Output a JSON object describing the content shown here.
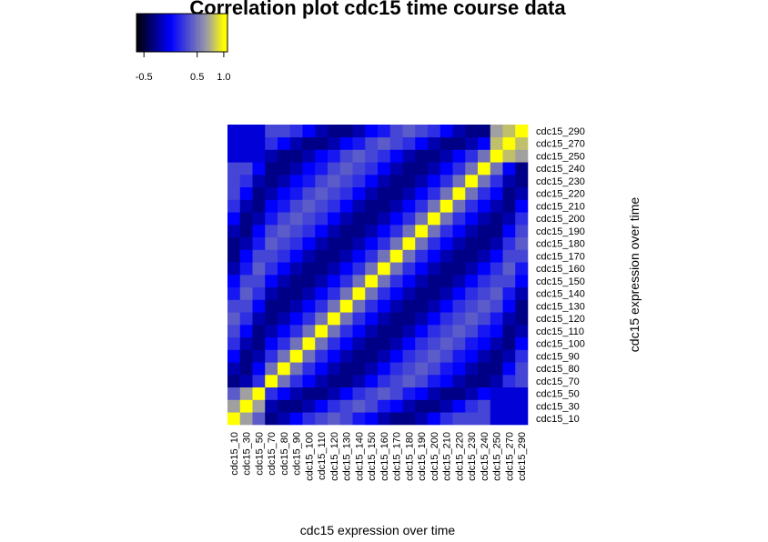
{
  "chart_data": {
    "type": "heatmap",
    "title": "Correlation plot cdc15 time course data",
    "xlabel": "cdc15 expression over time",
    "ylabel": "cdc15 expression over time",
    "categories": [
      "cdc15_10",
      "cdc15_30",
      "cdc15_50",
      "cdc15_70",
      "cdc15_80",
      "cdc15_90",
      "cdc15_100",
      "cdc15_110",
      "cdc15_120",
      "cdc15_130",
      "cdc15_140",
      "cdc15_150",
      "cdc15_160",
      "cdc15_170",
      "cdc15_180",
      "cdc15_190",
      "cdc15_200",
      "cdc15_210",
      "cdc15_220",
      "cdc15_230",
      "cdc15_240",
      "cdc15_250",
      "cdc15_270",
      "cdc15_290"
    ],
    "values": [
      [
        1,
        0.7,
        0.4,
        -0.3,
        -0.2,
        0,
        0.2,
        0.3,
        0.4,
        0.3,
        0.1,
        0,
        -0.2,
        -0.3,
        -0.3,
        -0.2,
        0,
        0.2,
        0.3,
        0.3,
        0.3,
        -0.1,
        -0.1,
        -0.1
      ],
      [
        0.7,
        1,
        0.7,
        -0.2,
        -0.3,
        -0.3,
        -0.2,
        0,
        0.2,
        0.3,
        0.4,
        0.3,
        0.1,
        0,
        -0.2,
        -0.3,
        -0.3,
        -0.2,
        0,
        0.2,
        0.3,
        -0.1,
        -0.1,
        -0.1
      ],
      [
        0.4,
        0.7,
        1,
        0.2,
        0,
        -0.2,
        -0.3,
        -0.3,
        -0.2,
        0,
        0.2,
        0.3,
        0.4,
        0.3,
        0.1,
        0,
        -0.2,
        -0.3,
        -0.3,
        -0.2,
        0,
        -0.1,
        -0.1,
        -0.1
      ],
      [
        -0.3,
        -0.2,
        0.2,
        1,
        0.5,
        0.2,
        0,
        -0.2,
        -0.3,
        -0.3,
        -0.2,
        0,
        0.2,
        0.3,
        0.4,
        0.3,
        0.1,
        0,
        -0.2,
        -0.3,
        -0.3,
        -0.2,
        0.2,
        0.3
      ],
      [
        -0.2,
        -0.3,
        0,
        0.5,
        1,
        0.5,
        0.2,
        0,
        -0.2,
        -0.3,
        -0.3,
        -0.2,
        0,
        0.2,
        0.3,
        0.4,
        0.3,
        0.1,
        0,
        -0.2,
        -0.3,
        -0.3,
        0,
        0.3
      ],
      [
        0,
        -0.3,
        -0.2,
        0.2,
        0.5,
        1,
        0.5,
        0.2,
        0,
        -0.2,
        -0.3,
        -0.3,
        -0.2,
        0,
        0.2,
        0.3,
        0.4,
        0.3,
        0.1,
        0,
        -0.2,
        -0.3,
        -0.2,
        0.2
      ],
      [
        0.2,
        -0.2,
        -0.3,
        0,
        0.2,
        0.5,
        1,
        0.5,
        0.2,
        0,
        -0.2,
        -0.3,
        -0.3,
        -0.2,
        0,
        0.2,
        0.3,
        0.4,
        0.3,
        0.1,
        0,
        -0.2,
        -0.3,
        0
      ],
      [
        0.3,
        0,
        -0.3,
        -0.2,
        0,
        0.2,
        0.5,
        1,
        0.5,
        0.2,
        0,
        -0.2,
        -0.3,
        -0.3,
        -0.2,
        0,
        0.2,
        0.3,
        0.4,
        0.3,
        0.1,
        0,
        -0.3,
        -0.2
      ],
      [
        0.4,
        0.2,
        -0.2,
        -0.3,
        -0.2,
        0,
        0.2,
        0.5,
        1,
        0.5,
        0.2,
        0,
        -0.2,
        -0.3,
        -0.3,
        -0.2,
        0,
        0.2,
        0.3,
        0.4,
        0.3,
        0.1,
        -0.2,
        -0.3
      ],
      [
        0.3,
        0.3,
        0,
        -0.3,
        -0.3,
        -0.2,
        0,
        0.2,
        0.5,
        1,
        0.5,
        0.2,
        0,
        -0.2,
        -0.3,
        -0.3,
        -0.2,
        0,
        0.2,
        0.3,
        0.4,
        0.3,
        0,
        -0.3
      ],
      [
        0.1,
        0.4,
        0.2,
        -0.2,
        -0.3,
        -0.3,
        -0.2,
        0,
        0.2,
        0.5,
        1,
        0.5,
        0.2,
        0,
        -0.2,
        -0.3,
        -0.3,
        -0.2,
        0,
        0.2,
        0.3,
        0.4,
        0.1,
        -0.2
      ],
      [
        0,
        0.3,
        0.3,
        0,
        -0.2,
        -0.3,
        -0.3,
        -0.2,
        0,
        0.2,
        0.5,
        1,
        0.5,
        0.2,
        0,
        -0.2,
        -0.3,
        -0.3,
        -0.2,
        0,
        0.2,
        0.3,
        0.3,
        0
      ],
      [
        -0.2,
        0.1,
        0.4,
        0.2,
        0,
        -0.2,
        -0.3,
        -0.3,
        -0.2,
        0,
        0.2,
        0.5,
        1,
        0.5,
        0.2,
        0,
        -0.2,
        -0.3,
        -0.3,
        -0.2,
        0,
        0.2,
        0.4,
        0.1
      ],
      [
        -0.3,
        0,
        0.3,
        0.3,
        0.2,
        0,
        -0.2,
        -0.3,
        -0.3,
        -0.2,
        0,
        0.2,
        0.5,
        1,
        0.5,
        0.2,
        0,
        -0.2,
        -0.3,
        -0.3,
        -0.2,
        0,
        0.3,
        0.3
      ],
      [
        -0.3,
        -0.2,
        0.1,
        0.4,
        0.3,
        0.2,
        0,
        -0.2,
        -0.3,
        -0.3,
        -0.2,
        0,
        0.2,
        0.5,
        1,
        0.5,
        0.2,
        0,
        -0.2,
        -0.3,
        -0.3,
        -0.2,
        0.2,
        0.4
      ],
      [
        -0.2,
        -0.3,
        0,
        0.3,
        0.4,
        0.3,
        0.2,
        0,
        -0.2,
        -0.3,
        -0.3,
        -0.2,
        0,
        0.2,
        0.5,
        1,
        0.5,
        0.2,
        0,
        -0.2,
        -0.3,
        -0.3,
        0,
        0.3
      ],
      [
        0,
        -0.3,
        -0.2,
        0.1,
        0.3,
        0.4,
        0.3,
        0.2,
        0,
        -0.2,
        -0.3,
        -0.3,
        -0.2,
        0,
        0.2,
        0.5,
        1,
        0.5,
        0.2,
        0,
        -0.2,
        -0.3,
        -0.2,
        0.2
      ],
      [
        0.2,
        -0.2,
        -0.3,
        0,
        0.1,
        0.3,
        0.4,
        0.3,
        0.2,
        0,
        -0.2,
        -0.3,
        -0.3,
        -0.2,
        0,
        0.2,
        0.5,
        1,
        0.5,
        0.2,
        0,
        -0.2,
        -0.3,
        0
      ],
      [
        0.3,
        0,
        -0.3,
        -0.2,
        0,
        0.1,
        0.3,
        0.4,
        0.3,
        0.2,
        0,
        -0.2,
        -0.3,
        -0.3,
        -0.2,
        0,
        0.2,
        0.5,
        1,
        0.5,
        0.2,
        0,
        -0.3,
        -0.2
      ],
      [
        0.3,
        0.2,
        -0.2,
        -0.3,
        -0.2,
        0,
        0.1,
        0.3,
        0.4,
        0.3,
        0.2,
        0,
        -0.2,
        -0.3,
        -0.3,
        -0.2,
        0,
        0.2,
        0.5,
        1,
        0.5,
        0.2,
        -0.2,
        -0.3
      ],
      [
        0.3,
        0.3,
        0,
        -0.3,
        -0.3,
        -0.2,
        0,
        0.1,
        0.3,
        0.4,
        0.3,
        0.2,
        0,
        -0.2,
        -0.3,
        -0.3,
        -0.2,
        0,
        0.2,
        0.5,
        1,
        0.5,
        0,
        -0.3
      ],
      [
        -0.1,
        -0.1,
        -0.1,
        -0.2,
        -0.3,
        -0.3,
        -0.2,
        0,
        0.1,
        0.3,
        0.4,
        0.3,
        0.2,
        0,
        -0.2,
        -0.3,
        -0.3,
        -0.2,
        0,
        0.2,
        0.5,
        1,
        0.8,
        0.7
      ],
      [
        -0.1,
        -0.1,
        -0.1,
        0.2,
        0,
        -0.2,
        -0.3,
        -0.3,
        -0.2,
        0,
        0.1,
        0.3,
        0.4,
        0.3,
        0.2,
        0,
        -0.2,
        -0.3,
        -0.3,
        -0.2,
        0,
        0.8,
        1,
        0.8
      ],
      [
        -0.1,
        -0.1,
        -0.1,
        0.3,
        0.3,
        0.2,
        0,
        -0.2,
        -0.3,
        -0.3,
        -0.2,
        0,
        0.1,
        0.3,
        0.4,
        0.3,
        0.2,
        0,
        -0.2,
        -0.3,
        -0.3,
        0.7,
        0.8,
        1
      ]
    ],
    "colorscale": [
      [
        -0.64,
        "#000000"
      ],
      [
        0.0,
        "#0000ff"
      ],
      [
        0.7,
        "#a0a0a0"
      ],
      [
        1.0,
        "#ffff00"
      ]
    ],
    "zlim": [
      -0.64,
      1.07
    ],
    "zticks": [
      -0.5,
      0.5,
      {
        "value": 1,
        "label": "1.0"
      }
    ]
  }
}
